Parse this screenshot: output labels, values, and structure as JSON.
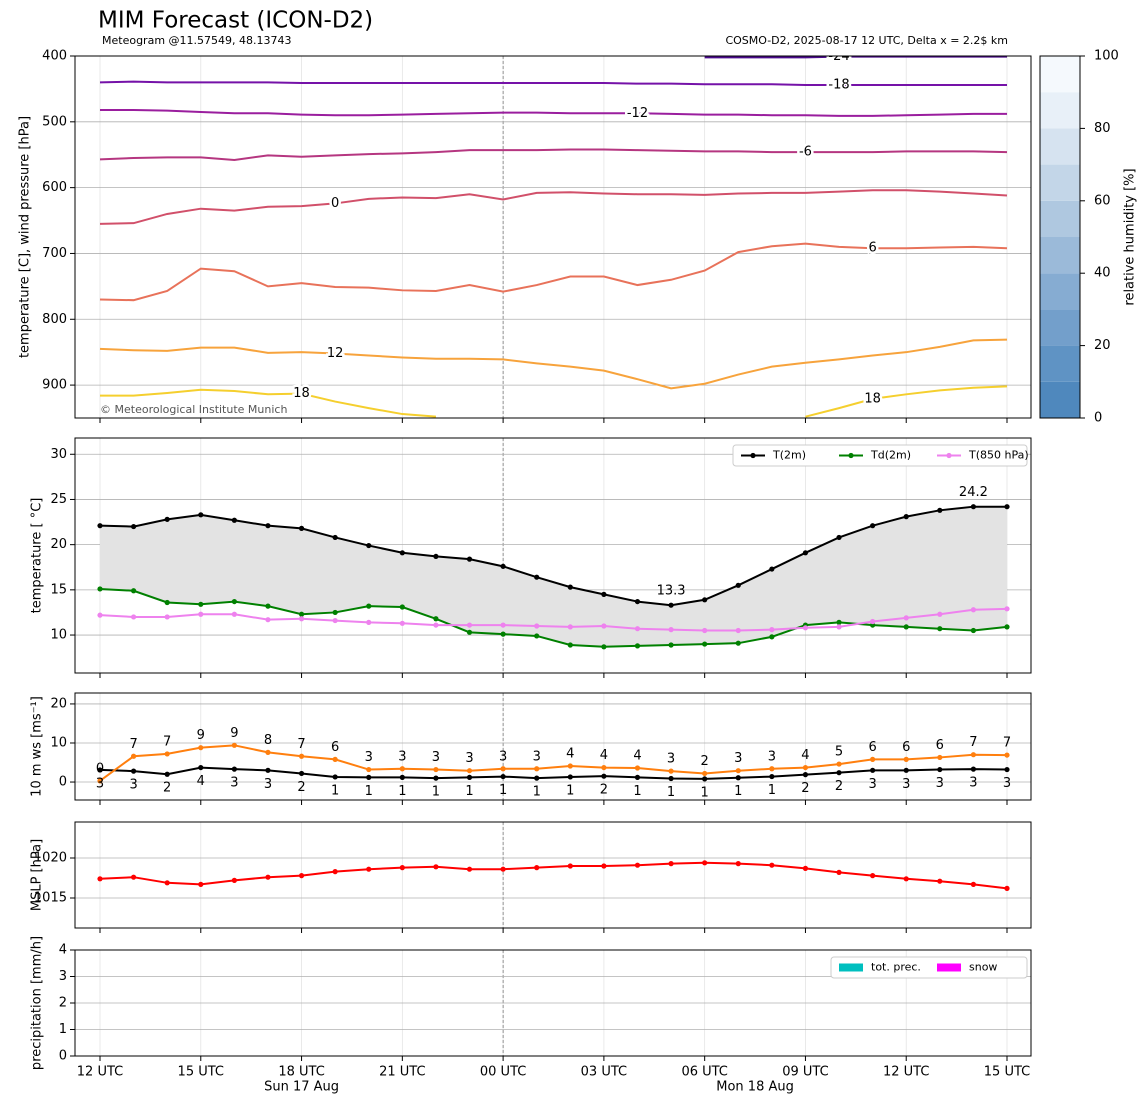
{
  "header": {
    "title": "MIM Forecast (ICON-D2)",
    "subtitle": "Meteogram @11.57549, 48.13743",
    "source": "COSMO-D2, 2025-08-17 12 UTC, Delta x = 2.2$ km",
    "copyright": "© Meteorological Institute Munich"
  },
  "time_axis": {
    "categories": [
      "12 UTC",
      null,
      null,
      "15 UTC",
      null,
      null,
      "18 UTC",
      null,
      null,
      "21 UTC",
      null,
      null,
      "00 UTC",
      null,
      null,
      "03 UTC",
      null,
      null,
      "06 UTC",
      null,
      null,
      "09 UTC",
      null,
      null,
      "12 UTC",
      null,
      null,
      "15 UTC"
    ],
    "date_labels": [
      "Sun 17 Aug",
      "Mon 18 Aug"
    ]
  },
  "chart_data": [
    {
      "type": "contour",
      "ylabel": "temperature [C], wind pressure [hPa]",
      "ylim": [
        400,
        950
      ],
      "y_inverted": true,
      "yticks": [
        400,
        500,
        600,
        700,
        800,
        900
      ],
      "grid": true,
      "series": [
        {
          "name": "-24",
          "color": "#4b0c8c",
          "values": [
            null,
            null,
            null,
            null,
            null,
            null,
            null,
            null,
            null,
            null,
            null,
            null,
            null,
            null,
            null,
            null,
            null,
            null,
            402,
            402,
            402,
            402,
            401,
            401,
            401,
            401,
            401,
            401
          ]
        },
        {
          "name": "-18",
          "color": "#7512a8",
          "values": [
            440,
            439,
            440,
            440,
            440,
            440,
            441,
            441,
            441,
            441,
            441,
            441,
            441,
            441,
            441,
            441,
            442,
            442,
            443,
            443,
            443,
            444,
            444,
            444,
            444,
            444,
            444,
            444
          ]
        },
        {
          "name": "-12",
          "color": "#9a1e9e",
          "values": [
            482,
            482,
            483,
            485,
            487,
            487,
            489,
            490,
            490,
            489,
            488,
            487,
            486,
            486,
            487,
            487,
            487,
            488,
            489,
            489,
            490,
            490,
            491,
            491,
            490,
            489,
            488,
            488
          ]
        },
        {
          "name": "-6",
          "color": "#b53680",
          "values": [
            557,
            555,
            554,
            554,
            558,
            551,
            553,
            551,
            549,
            548,
            546,
            543,
            543,
            543,
            542,
            542,
            543,
            544,
            545,
            545,
            546,
            546,
            546,
            546,
            545,
            545,
            545,
            546
          ]
        },
        {
          "name": "0",
          "color": "#d1506a",
          "values": [
            655,
            654,
            640,
            632,
            635,
            629,
            628,
            624,
            617,
            615,
            616,
            610,
            618,
            608,
            607,
            609,
            610,
            610,
            611,
            609,
            608,
            608,
            606,
            604,
            604,
            606,
            609,
            612
          ]
        },
        {
          "name": "6",
          "color": "#e8725a",
          "values": [
            770,
            771,
            757,
            723,
            727,
            750,
            745,
            751,
            752,
            756,
            757,
            748,
            758,
            748,
            735,
            735,
            748,
            740,
            726,
            698,
            689,
            685,
            690,
            692,
            692,
            691,
            690,
            692
          ]
        },
        {
          "name": "12",
          "color": "#f7a33c",
          "values": [
            845,
            847,
            848,
            843,
            843,
            851,
            850,
            852,
            855,
            858,
            860,
            860,
            861,
            867,
            872,
            878,
            891,
            905,
            898,
            884,
            872,
            866,
            861,
            855,
            850,
            842,
            832,
            831
          ]
        },
        {
          "name": "18",
          "color": "#f5cf2e",
          "values": [
            916,
            916,
            912,
            907,
            909,
            914,
            913,
            925,
            935,
            944,
            948,
            null,
            null,
            null,
            null,
            null,
            null,
            null,
            null,
            null,
            null,
            948,
            935,
            921,
            914,
            908,
            904,
            902
          ]
        }
      ],
      "colorbar": {
        "label": "relative humidity [%]",
        "lim": [
          0,
          100
        ],
        "ticks": [
          0,
          20,
          40,
          60,
          80,
          100
        ],
        "colors": [
          "#4f88bd",
          "#5f93c4",
          "#739fcb",
          "#86acd2",
          "#9bbad9",
          "#afc8e0",
          "#c3d6e8",
          "#d6e3f0",
          "#e8f0f8",
          "#f5f9fd"
        ]
      }
    },
    {
      "type": "line",
      "ylabel": "temperature [ °C]",
      "ylim": [
        5.8,
        31.8
      ],
      "yticks": [
        10,
        15,
        20,
        25,
        30
      ],
      "grid": true,
      "legend": "upper right",
      "fill_between": true,
      "series": [
        {
          "name": "T(2m)",
          "color": "#000000",
          "values": [
            22.1,
            22.0,
            22.8,
            23.3,
            22.7,
            22.1,
            21.8,
            20.8,
            19.9,
            19.1,
            18.7,
            18.4,
            17.6,
            16.4,
            15.3,
            14.5,
            13.7,
            13.3,
            13.9,
            15.5,
            17.3,
            19.1,
            20.8,
            22.1,
            23.1,
            23.8,
            24.2,
            24.2
          ],
          "value_labels": [
            null,
            null,
            null,
            null,
            null,
            null,
            null,
            null,
            null,
            null,
            null,
            null,
            null,
            null,
            null,
            null,
            null,
            "13.3",
            null,
            null,
            null,
            null,
            null,
            null,
            null,
            null,
            "24.2",
            null
          ],
          "min_color": "#0000ff",
          "max_color": "#ff0000"
        },
        {
          "name": "Td(2m)",
          "color": "#008000",
          "values": [
            15.1,
            14.9,
            13.6,
            13.4,
            13.7,
            13.2,
            12.3,
            12.5,
            13.2,
            13.1,
            11.8,
            10.3,
            10.1,
            9.9,
            8.9,
            8.7,
            8.8,
            8.9,
            9.0,
            9.1,
            9.8,
            11.1,
            11.4,
            11.1,
            10.9,
            10.7,
            10.5,
            10.9
          ]
        },
        {
          "name": "T(850 hPa)",
          "color": "#ee82ee",
          "values": [
            12.2,
            12.0,
            12.0,
            12.3,
            12.3,
            11.7,
            11.8,
            11.6,
            11.4,
            11.3,
            11.1,
            11.1,
            11.1,
            11.0,
            10.9,
            11.0,
            10.7,
            10.6,
            10.5,
            10.5,
            10.6,
            10.8,
            10.9,
            11.5,
            11.9,
            12.3,
            12.8,
            12.9
          ]
        }
      ]
    },
    {
      "type": "line",
      "ylabel": "10 m ws [ms⁻¹]",
      "ylim": [
        -4.6,
        22.8
      ],
      "yticks": [
        0,
        10,
        20
      ],
      "grid": true,
      "series": [
        {
          "color": "#000000",
          "values": [
            3.1,
            2.8,
            2.0,
            3.7,
            3.3,
            3.0,
            2.2,
            1.3,
            1.2,
            1.2,
            1.0,
            1.2,
            1.4,
            1.0,
            1.3,
            1.5,
            1.2,
            0.9,
            0.8,
            1.1,
            1.4,
            1.9,
            2.4,
            3.0,
            3.0,
            3.2,
            3.3,
            3.2
          ],
          "value_labels": [
            "3",
            "3",
            "2",
            "4",
            "3",
            "3",
            "2",
            "1",
            "1",
            "1",
            "1",
            "1",
            "1",
            "1",
            "1",
            "2",
            "1",
            "1",
            "1",
            "1",
            "1",
            "2",
            "2",
            "3",
            "3",
            "3",
            "3",
            "3"
          ]
        },
        {
          "color": "#ff7f0e",
          "values": [
            0.3,
            6.6,
            7.2,
            8.8,
            9.4,
            7.6,
            6.6,
            5.8,
            3.2,
            3.4,
            3.2,
            2.9,
            3.4,
            3.4,
            4.1,
            3.7,
            3.6,
            2.8,
            2.2,
            2.9,
            3.4,
            3.7,
            4.6,
            5.8,
            5.8,
            6.3,
            7.0,
            6.9
          ],
          "value_labels": [
            "0",
            "7",
            "7",
            "9",
            "9",
            "8",
            "7",
            "6",
            "3",
            "3",
            "3",
            "3",
            "3",
            "3",
            "4",
            "4",
            "4",
            "3",
            "2",
            "3",
            "3",
            "4",
            "5",
            "6",
            "6",
            "6",
            "7",
            "7"
          ]
        }
      ]
    },
    {
      "type": "line",
      "ylabel": "MSLP [hPa]",
      "ylim": [
        1011.25,
        1024.5
      ],
      "yticks": [
        1015,
        1020
      ],
      "grid": true,
      "series": [
        {
          "color": "#ff0000",
          "values": [
            1017.4,
            1017.6,
            1016.9,
            1016.7,
            1017.2,
            1017.6,
            1017.8,
            1018.3,
            1018.6,
            1018.8,
            1018.9,
            1018.6,
            1018.6,
            1018.8,
            1019.0,
            1019.0,
            1019.1,
            1019.3,
            1019.4,
            1019.3,
            1019.1,
            1018.7,
            1018.2,
            1017.8,
            1017.4,
            1017.1,
            1016.7,
            1016.2
          ]
        }
      ]
    },
    {
      "type": "bar",
      "ylabel": "precipitation [mm/h]",
      "ylim": [
        0,
        4
      ],
      "yticks": [
        0,
        1,
        2,
        3,
        4
      ],
      "grid": true,
      "legend": "upper right",
      "series": [
        {
          "name": "tot. prec.",
          "color": "#00bfbf",
          "values": [
            0,
            0,
            0,
            0,
            0,
            0,
            0,
            0,
            0,
            0,
            0,
            0,
            0,
            0,
            0,
            0,
            0,
            0,
            0,
            0,
            0,
            0,
            0,
            0,
            0,
            0,
            0,
            0
          ]
        },
        {
          "name": "snow",
          "color": "#ff00ff",
          "values": [
            0,
            0,
            0,
            0,
            0,
            0,
            0,
            0,
            0,
            0,
            0,
            0,
            0,
            0,
            0,
            0,
            0,
            0,
            0,
            0,
            0,
            0,
            0,
            0,
            0,
            0,
            0,
            0
          ]
        }
      ]
    }
  ]
}
